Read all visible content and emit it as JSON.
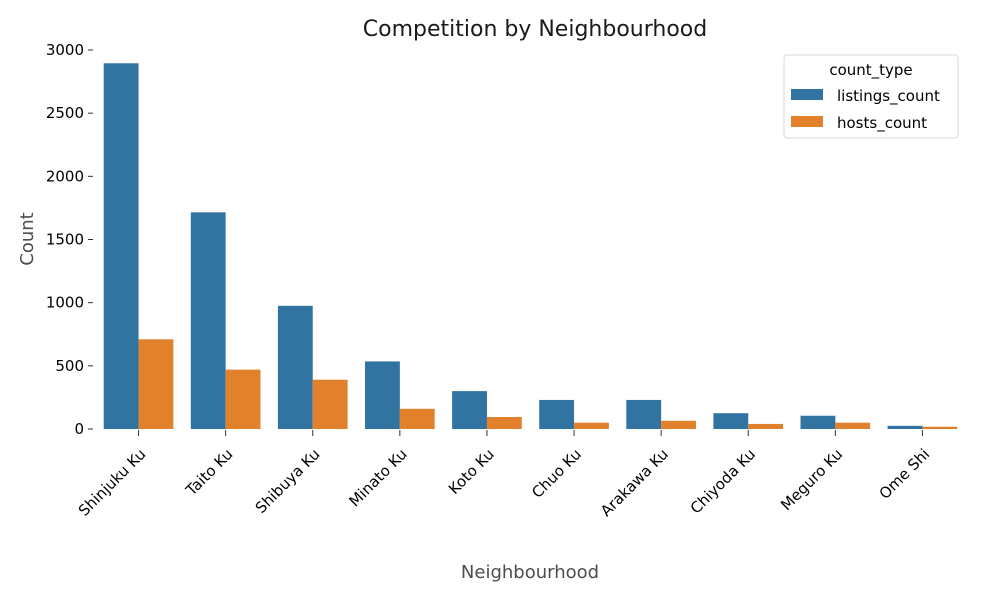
{
  "chart_data": {
    "type": "bar",
    "title": "Competition by Neighbourhood",
    "xlabel": "Neighbourhood",
    "ylabel": "Count",
    "ylim": [
      0,
      3000
    ],
    "yticks": [
      "0",
      "500",
      "1000",
      "1500",
      "2000",
      "2500",
      "3000"
    ],
    "categories": [
      "Shinjuku Ku",
      "Taito Ku",
      "Shibuya Ku",
      "Minato Ku",
      "Koto Ku",
      "Chuo Ku",
      "Arakawa Ku",
      "Chiyoda Ku",
      "Meguro Ku",
      "Ome Shi"
    ],
    "series": [
      {
        "name": "listings_count",
        "color": "#3274a1",
        "values": [
          2895,
          1715,
          975,
          535,
          300,
          230,
          230,
          125,
          105,
          25
        ]
      },
      {
        "name": "hosts_count",
        "color": "#e1812c",
        "values": [
          710,
          470,
          390,
          160,
          95,
          50,
          65,
          40,
          50,
          18
        ]
      }
    ],
    "legend": {
      "title": "count_type",
      "position": "top-right"
    },
    "grid": false
  }
}
